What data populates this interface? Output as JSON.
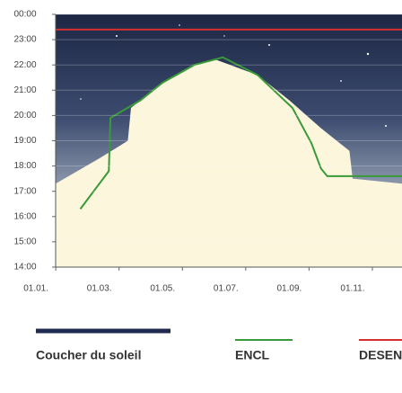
{
  "chart_data": {
    "type": "line",
    "xlim": [
      1.62,
      12.56
    ],
    "ylim": [
      14,
      24
    ],
    "xticks": [
      {
        "value": 1,
        "label": "01.01."
      },
      {
        "value": 3,
        "label": "01.03."
      },
      {
        "value": 5,
        "label": "01.05."
      },
      {
        "value": 7,
        "label": "01.07."
      },
      {
        "value": 9,
        "label": "01.09."
      },
      {
        "value": 11,
        "label": "01.11."
      }
    ],
    "yticks": [
      {
        "value": 24,
        "label": "00:00"
      },
      {
        "value": 23,
        "label": "23:00"
      },
      {
        "value": 22,
        "label": "22:00"
      },
      {
        "value": 21,
        "label": "21:00"
      },
      {
        "value": 20,
        "label": "20:00"
      },
      {
        "value": 19,
        "label": "19:00"
      },
      {
        "value": 18,
        "label": "18:00"
      },
      {
        "value": 17,
        "label": "17:00"
      },
      {
        "value": 16,
        "label": "16:00"
      },
      {
        "value": 15,
        "label": "15:00"
      },
      {
        "value": 14,
        "label": "14:00"
      }
    ],
    "grid": true,
    "series": [
      {
        "name": "Coucher du soleil",
        "color": "#1f2a4e",
        "fill": true,
        "x": [
          1.62,
          3,
          3.9,
          4.0,
          5,
          6,
          6.7,
          8,
          9,
          10,
          10.9,
          11,
          12.56
        ],
        "values": [
          17.3,
          18.3,
          19.0,
          20.3,
          21.3,
          22.0,
          22.2,
          21.6,
          20.6,
          19.5,
          18.6,
          17.5,
          17.3
        ]
      },
      {
        "name": "ENCL",
        "color": "#3a9a3a",
        "x": [
          2.4,
          3.3,
          3.35,
          4.3,
          5,
          6,
          6.9,
          8,
          9.1,
          9.7,
          10.0,
          10.2,
          12.56
        ],
        "values": [
          16.3,
          17.8,
          19.9,
          20.6,
          21.3,
          22.0,
          22.3,
          21.6,
          20.3,
          18.9,
          17.9,
          17.6,
          17.6
        ]
      },
      {
        "name": "DESENCL",
        "color": "#d62f2f",
        "x": [
          1.62,
          12.56
        ],
        "values": [
          23.4,
          23.4
        ]
      }
    ]
  }
}
